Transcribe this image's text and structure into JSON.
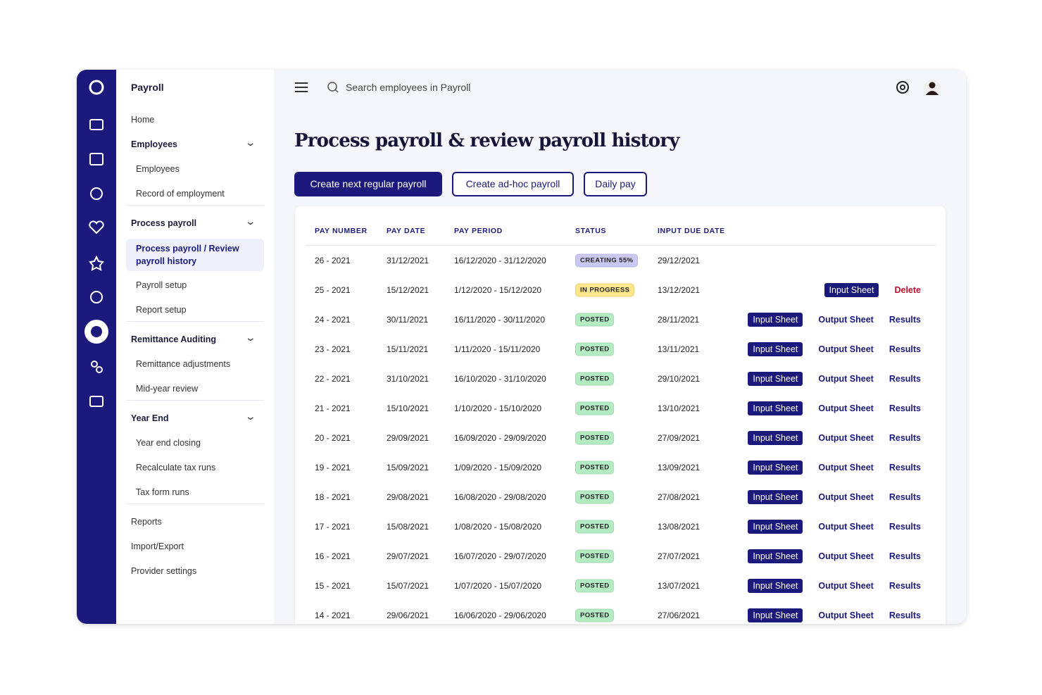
{
  "app": {
    "title": "Payroll"
  },
  "nav": [
    {
      "label": "Home"
    },
    {
      "label": "Employees",
      "items": [
        "Employees",
        "Record of employment"
      ]
    },
    {
      "label": "Process payroll",
      "items": [
        "Process payroll / Review payroll history",
        "Payroll setup",
        "Report setup"
      ],
      "selected": 0
    },
    {
      "label": "Remittance Auditing",
      "items": [
        "Remittance adjustments",
        "Mid-year review"
      ]
    },
    {
      "label": "Year End",
      "items": [
        "Year end closing",
        "Recalculate tax runs",
        "Tax form runs"
      ]
    },
    {
      "label": "Reports"
    },
    {
      "label": "Import/Export"
    },
    {
      "label": "Provider settings"
    }
  ],
  "search": {
    "placeholder": "Search employees in Payroll"
  },
  "page": {
    "title": "Process payroll & review payroll history",
    "buttons": [
      "Create next regular payroll",
      "Create ad-hoc payroll",
      "Daily pay"
    ]
  },
  "table": {
    "columns": [
      "PAY NUMBER",
      "PAY DATE",
      "PAY PERIOD",
      "STATUS",
      "INPUT DUE DATE"
    ],
    "rows": [
      {
        "cells": [
          "26 - 2021",
          "31/12/2021",
          "16/12/2020 - 31/12/2020"
        ],
        "status": {
          "text": "CREATING 55%",
          "color": "#c9c8f2"
        },
        "due": "29/12/2021",
        "actions": []
      },
      {
        "cells": [
          "25 - 2021",
          "15/12/2021",
          "1/12/2020 - 15/12/2020"
        ],
        "status": {
          "text": "IN PROGRESS",
          "color": "#fde58a"
        },
        "due": "13/12/2021",
        "actions": [
          "Input Sheet",
          "Delete"
        ]
      },
      {
        "cells": [
          "24 - 2021",
          "30/11/2021",
          "16/11/2020 - 30/11/2020"
        ],
        "status": {
          "text": "POSTED",
          "color": "#b3ecc2"
        },
        "due": "28/11/2021",
        "actions": [
          "Input Sheet",
          "Output Sheet",
          "Results"
        ]
      },
      {
        "cells": [
          "23 - 2021",
          "15/11/2021",
          "1/11/2020 - 15/11/2020"
        ],
        "status": {
          "text": "POSTED",
          "color": "#b3ecc2"
        },
        "due": "13/11/2021",
        "actions": [
          "Input Sheet",
          "Output Sheet",
          "Results"
        ]
      },
      {
        "cells": [
          "22 - 2021",
          "31/10/2021",
          "16/10/2020 - 31/10/2020"
        ],
        "status": {
          "text": "POSTED",
          "color": "#b3ecc2"
        },
        "due": "29/10/2021",
        "actions": [
          "Input Sheet",
          "Output Sheet",
          "Results"
        ]
      },
      {
        "cells": [
          "21 - 2021",
          "15/10/2021",
          "1/10/2020 - 15/10/2020"
        ],
        "status": {
          "text": "POSTED",
          "color": "#b3ecc2"
        },
        "due": "13/10/2021",
        "actions": [
          "Input Sheet",
          "Output Sheet",
          "Results"
        ]
      },
      {
        "cells": [
          "20 - 2021",
          "29/09/2021",
          "16/09/2020 - 29/09/2020"
        ],
        "status": {
          "text": "POSTED",
          "color": "#b3ecc2"
        },
        "due": "27/09/2021",
        "actions": [
          "Input Sheet",
          "Output Sheet",
          "Results"
        ]
      },
      {
        "cells": [
          "19 - 2021",
          "15/09/2021",
          "1/09/2020 - 15/09/2020"
        ],
        "status": {
          "text": "POSTED",
          "color": "#b3ecc2"
        },
        "due": "13/09/2021",
        "actions": [
          "Input Sheet",
          "Output Sheet",
          "Results"
        ]
      },
      {
        "cells": [
          "18 - 2021",
          "29/08/2021",
          "16/08/2020 - 29/08/2020"
        ],
        "status": {
          "text": "POSTED",
          "color": "#b3ecc2"
        },
        "due": "27/08/2021",
        "actions": [
          "Input Sheet",
          "Output Sheet",
          "Results"
        ]
      },
      {
        "cells": [
          "17 - 2021",
          "15/08/2021",
          "1/08/2020 - 15/08/2020"
        ],
        "status": {
          "text": "POSTED",
          "color": "#b3ecc2"
        },
        "due": "13/08/2021",
        "actions": [
          "Input Sheet",
          "Output Sheet",
          "Results"
        ]
      },
      {
        "cells": [
          "16 - 2021",
          "29/07/2021",
          "16/07/2020 - 29/07/2020"
        ],
        "status": {
          "text": "POSTED",
          "color": "#b3ecc2"
        },
        "due": "27/07/2021",
        "actions": [
          "Input Sheet",
          "Output Sheet",
          "Results"
        ]
      },
      {
        "cells": [
          "15 - 2021",
          "15/07/2021",
          "1/07/2020 - 15/07/2020"
        ],
        "status": {
          "text": "POSTED",
          "color": "#b3ecc2"
        },
        "due": "13/07/2021",
        "actions": [
          "Input Sheet",
          "Output Sheet",
          "Results"
        ]
      },
      {
        "cells": [
          "14 - 2021",
          "29/06/2021",
          "16/06/2020 - 29/06/2020"
        ],
        "status": {
          "text": "POSTED",
          "color": "#b3ecc2"
        },
        "due": "27/06/2021",
        "actions": [
          "Input Sheet",
          "Output Sheet",
          "Results"
        ]
      }
    ]
  }
}
